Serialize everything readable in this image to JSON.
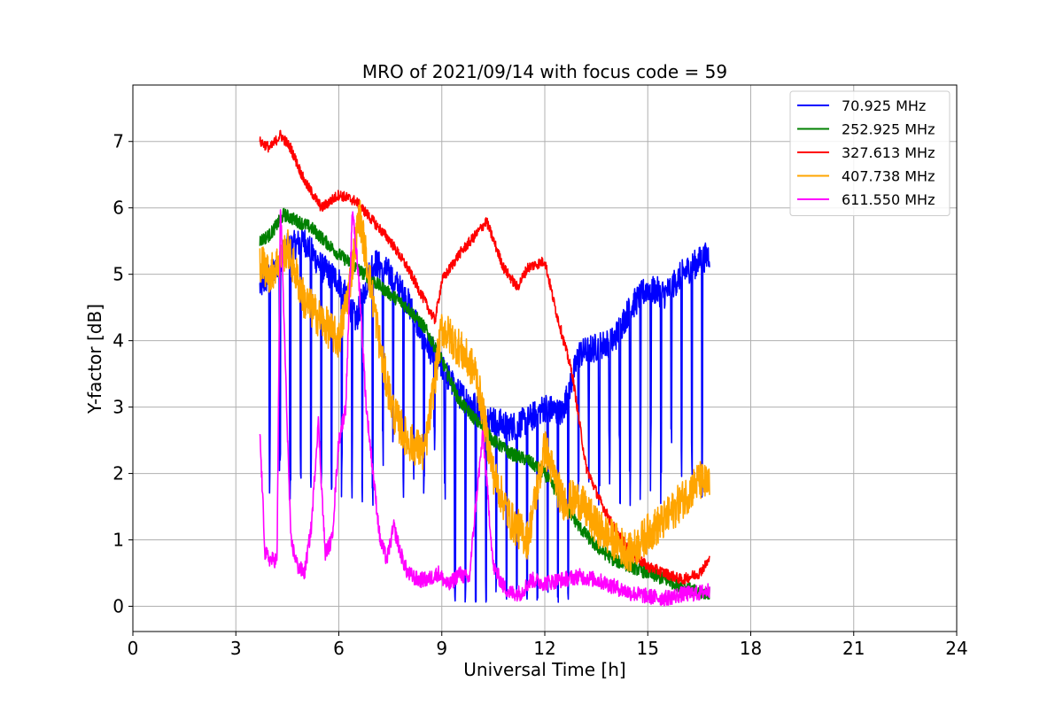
{
  "chart_data": {
    "type": "line",
    "title": "MRO of 2021/09/14 with focus code = 59",
    "xlabel": "Universal Time [h]",
    "ylabel": "Y-factor [dB]",
    "xlim": [
      0,
      24
    ],
    "ylim": [
      -0.38,
      7.85
    ],
    "xticks": [
      0,
      3,
      6,
      9,
      12,
      15,
      18,
      21,
      24
    ],
    "yticks": [
      0,
      1,
      2,
      3,
      4,
      5,
      6,
      7
    ],
    "grid": true,
    "legend_position": "top-right",
    "series": [
      {
        "name": " 70.925 MHz",
        "color": "#0000ff",
        "noise": 0.22,
        "dip_period": 0.3,
        "dip_floor": "low",
        "x": [
          3.7,
          4.0,
          4.5,
          5.0,
          5.5,
          6.0,
          6.5,
          7.0,
          7.5,
          8.0,
          8.5,
          9.0,
          9.5,
          10.0,
          10.5,
          11.0,
          11.5,
          12.0,
          12.5,
          13.0,
          13.5,
          14.0,
          14.5,
          15.0,
          15.5,
          16.0,
          16.5,
          16.8
        ],
        "y": [
          4.8,
          5.0,
          5.4,
          5.5,
          5.1,
          4.9,
          4.3,
          5.2,
          5.0,
          4.6,
          4.0,
          3.6,
          3.2,
          3.0,
          2.8,
          2.7,
          2.8,
          3.0,
          2.9,
          3.8,
          3.9,
          4.0,
          4.5,
          4.8,
          4.7,
          5.0,
          5.2,
          5.3
        ]
      },
      {
        "name": "252.925 MHz",
        "color": "#008000",
        "noise": 0.1,
        "x": [
          3.7,
          4.0,
          4.4,
          4.8,
          5.2,
          5.6,
          6.0,
          6.5,
          7.0,
          7.5,
          8.0,
          8.5,
          9.0,
          9.5,
          10.0,
          10.5,
          11.0,
          11.5,
          12.0,
          12.5,
          13.0,
          13.5,
          14.0,
          14.5,
          15.0,
          15.5,
          16.0,
          16.5,
          16.8
        ],
        "y": [
          5.5,
          5.6,
          5.9,
          5.8,
          5.7,
          5.5,
          5.3,
          5.1,
          4.9,
          4.7,
          4.5,
          4.2,
          3.7,
          3.1,
          2.8,
          2.5,
          2.3,
          2.2,
          2.0,
          1.6,
          1.2,
          0.9,
          0.7,
          0.6,
          0.5,
          0.4,
          0.3,
          0.2,
          0.2
        ]
      },
      {
        "name": "327.613 MHz",
        "color": "#ff0000",
        "noise": 0.08,
        "x": [
          3.7,
          4.0,
          4.3,
          4.6,
          5.0,
          5.5,
          6.0,
          6.5,
          7.0,
          7.5,
          8.0,
          8.5,
          8.8,
          9.0,
          9.5,
          10.0,
          10.3,
          10.8,
          11.2,
          11.5,
          12.0,
          12.3,
          12.8,
          13.2,
          13.6,
          14.0,
          14.5,
          15.0,
          15.5,
          16.0,
          16.5,
          16.8
        ],
        "y": [
          7.0,
          6.9,
          7.1,
          6.9,
          6.4,
          6.0,
          6.2,
          6.1,
          5.8,
          5.5,
          5.1,
          4.6,
          4.3,
          4.9,
          5.3,
          5.6,
          5.8,
          5.1,
          4.8,
          5.1,
          5.2,
          4.5,
          3.5,
          2.1,
          1.6,
          1.2,
          0.8,
          0.6,
          0.5,
          0.4,
          0.5,
          0.7
        ]
      },
      {
        "name": "407.738 MHz",
        "color": "#ffa500",
        "noise": 0.3,
        "x": [
          3.7,
          4.0,
          4.5,
          5.0,
          5.5,
          6.0,
          6.3,
          6.6,
          7.0,
          7.3,
          7.6,
          8.0,
          8.5,
          9.0,
          9.5,
          10.0,
          10.5,
          11.0,
          11.5,
          12.0,
          12.5,
          13.0,
          13.5,
          14.0,
          14.5,
          15.0,
          15.5,
          16.0,
          16.5,
          16.8
        ],
        "y": [
          5.2,
          5.0,
          5.4,
          4.6,
          4.3,
          4.0,
          4.8,
          5.9,
          4.6,
          3.6,
          2.9,
          2.5,
          2.3,
          4.2,
          3.9,
          3.5,
          2.0,
          1.3,
          1.0,
          2.4,
          1.6,
          1.6,
          1.2,
          1.0,
          0.8,
          1.1,
          1.3,
          1.6,
          1.9,
          1.8
        ]
      },
      {
        "name": "611.550 MHz",
        "color": "#ff00ff",
        "noise": 0.12,
        "x": [
          3.7,
          3.85,
          4.0,
          4.2,
          4.3,
          4.45,
          4.6,
          4.8,
          5.0,
          5.2,
          5.4,
          5.6,
          5.8,
          6.0,
          6.2,
          6.4,
          6.6,
          6.8,
          7.0,
          7.2,
          7.4,
          7.6,
          7.8,
          8.0,
          8.3,
          8.6,
          8.9,
          9.2,
          9.5,
          9.8,
          10.0,
          10.2,
          10.5,
          10.8,
          11.0,
          11.3,
          11.6,
          12.0,
          12.5,
          13.0,
          13.5,
          14.0,
          14.5,
          15.0,
          15.5,
          16.0,
          16.5,
          16.8
        ],
        "y": [
          2.6,
          0.8,
          0.7,
          0.7,
          6.1,
          3.5,
          1.0,
          0.6,
          0.5,
          1.2,
          2.8,
          0.8,
          1.0,
          2.5,
          3.0,
          6.0,
          4.8,
          3.0,
          2.0,
          1.0,
          0.7,
          1.2,
          0.8,
          0.5,
          0.4,
          0.4,
          0.5,
          0.3,
          0.5,
          0.4,
          1.6,
          2.6,
          0.6,
          0.3,
          0.2,
          0.2,
          0.4,
          0.35,
          0.4,
          0.45,
          0.4,
          0.3,
          0.2,
          0.15,
          0.12,
          0.18,
          0.2,
          0.25
        ]
      }
    ]
  }
}
